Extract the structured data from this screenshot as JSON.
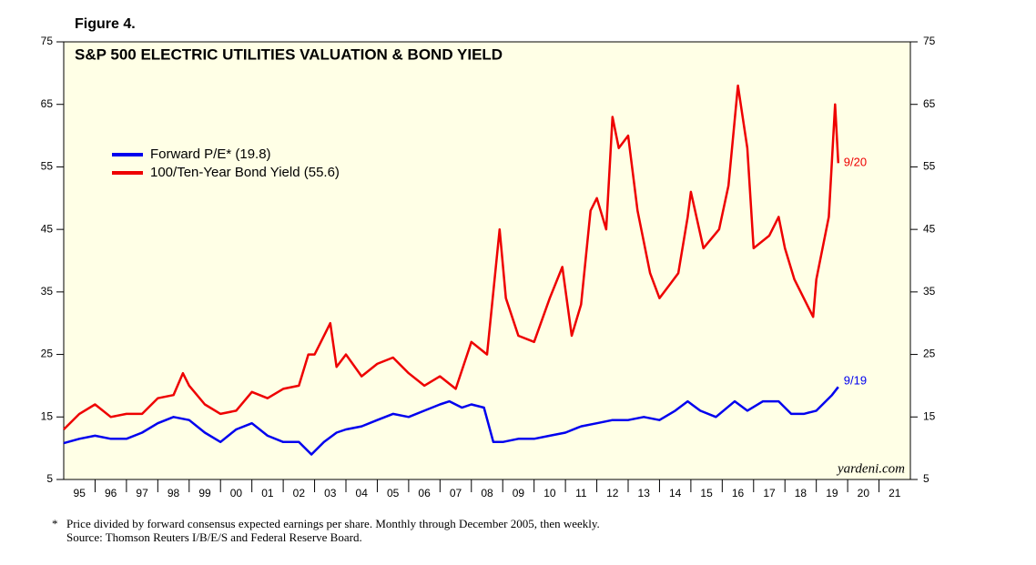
{
  "chart_data": {
    "type": "line",
    "figure_label": "Figure 4.",
    "title": "S&P 500 ELECTRIC UTILITIES VALUATION & BOND YIELD",
    "source_credit": "yardeni.com",
    "xlim": [
      1995,
      2022
    ],
    "xticks": [
      {
        "value": 1995.5,
        "label": "95"
      },
      {
        "value": 1996.5,
        "label": "96"
      },
      {
        "value": 1997.5,
        "label": "97"
      },
      {
        "value": 1998.5,
        "label": "98"
      },
      {
        "value": 1999.5,
        "label": "99"
      },
      {
        "value": 2000.5,
        "label": "00"
      },
      {
        "value": 2001.5,
        "label": "01"
      },
      {
        "value": 2002.5,
        "label": "02"
      },
      {
        "value": 2003.5,
        "label": "03"
      },
      {
        "value": 2004.5,
        "label": "04"
      },
      {
        "value": 2005.5,
        "label": "05"
      },
      {
        "value": 2006.5,
        "label": "06"
      },
      {
        "value": 2007.5,
        "label": "07"
      },
      {
        "value": 2008.5,
        "label": "08"
      },
      {
        "value": 2009.5,
        "label": "09"
      },
      {
        "value": 2010.5,
        "label": "10"
      },
      {
        "value": 2011.5,
        "label": "11"
      },
      {
        "value": 2012.5,
        "label": "12"
      },
      {
        "value": 2013.5,
        "label": "13"
      },
      {
        "value": 2014.5,
        "label": "14"
      },
      {
        "value": 2015.5,
        "label": "15"
      },
      {
        "value": 2016.5,
        "label": "16"
      },
      {
        "value": 2017.5,
        "label": "17"
      },
      {
        "value": 2018.5,
        "label": "18"
      },
      {
        "value": 2019.5,
        "label": "19"
      },
      {
        "value": 2020.5,
        "label": "20"
      },
      {
        "value": 2021.5,
        "label": "21"
      }
    ],
    "ylim": [
      5,
      75
    ],
    "yticks": [
      5,
      15,
      25,
      35,
      45,
      55,
      65,
      75
    ],
    "series": [
      {
        "name": "Forward P/E* (19.8)",
        "color": "#0000ee",
        "end_label": "9/19",
        "x": [
          1995.0,
          1995.5,
          1996.0,
          1996.5,
          1997.0,
          1997.5,
          1998.0,
          1998.5,
          1999.0,
          1999.5,
          2000.0,
          2000.5,
          2001.0,
          2001.5,
          2002.0,
          2002.5,
          2002.9,
          2003.3,
          2003.7,
          2004.0,
          2004.5,
          2005.0,
          2005.5,
          2006.0,
          2006.5,
          2007.0,
          2007.3,
          2007.7,
          2008.0,
          2008.4,
          2008.7,
          2009.0,
          2009.5,
          2010.0,
          2010.5,
          2011.0,
          2011.5,
          2012.0,
          2012.5,
          2013.0,
          2013.5,
          2014.0,
          2014.5,
          2014.9,
          2015.3,
          2015.8,
          2016.4,
          2016.8,
          2017.3,
          2017.8,
          2018.2,
          2018.6,
          2019.0,
          2019.5,
          2019.7
        ],
        "values": [
          10.8,
          11.5,
          12,
          11.5,
          11.5,
          12.5,
          14,
          15,
          14.5,
          12.5,
          11,
          13,
          14,
          12,
          11,
          11,
          9,
          11,
          12.5,
          13,
          13.5,
          14.5,
          15.5,
          15,
          16,
          17,
          17.5,
          16.5,
          17,
          16.5,
          11,
          11,
          11.5,
          11.5,
          12,
          12.5,
          13.5,
          14,
          14.5,
          14.5,
          15,
          14.5,
          16,
          17.5,
          16,
          15,
          17.5,
          16,
          17.5,
          17.5,
          15.5,
          15.5,
          16,
          18.5,
          19.8
        ]
      },
      {
        "name": "100/Ten-Year Bond Yield (55.6)",
        "color": "#ee0000",
        "end_label": "9/20",
        "x": [
          1995.0,
          1995.5,
          1996.0,
          1996.5,
          1997.0,
          1997.5,
          1998.0,
          1998.5,
          1998.8,
          1999.0,
          1999.5,
          2000.0,
          2000.5,
          2001.0,
          2001.5,
          2002.0,
          2002.5,
          2002.8,
          2003.0,
          2003.5,
          2003.7,
          2004.0,
          2004.5,
          2005.0,
          2005.5,
          2006.0,
          2006.5,
          2007.0,
          2007.5,
          2008.0,
          2008.5,
          2008.9,
          2009.1,
          2009.5,
          2010.0,
          2010.5,
          2010.9,
          2011.2,
          2011.5,
          2011.8,
          2012.0,
          2012.3,
          2012.5,
          2012.7,
          2013.0,
          2013.3,
          2013.7,
          2014.0,
          2014.3,
          2014.6,
          2014.9,
          2015.0,
          2015.4,
          2015.9,
          2016.2,
          2016.5,
          2016.8,
          2017.0,
          2017.5,
          2017.8,
          2018.0,
          2018.3,
          2018.6,
          2018.9,
          2019.0,
          2019.4,
          2019.6,
          2019.7
        ],
        "values": [
          13,
          15.5,
          17,
          15,
          15.5,
          15.5,
          18,
          18.5,
          22,
          20,
          17,
          15.5,
          16,
          19,
          18,
          19.5,
          20,
          25,
          25,
          30,
          23,
          25,
          21.5,
          23.5,
          24.5,
          22,
          20,
          21.5,
          19.5,
          27,
          25,
          45,
          34,
          28,
          27,
          34,
          39,
          28,
          33,
          48,
          50,
          45,
          63,
          58,
          60,
          48,
          38,
          34,
          36,
          38,
          47,
          51,
          42,
          45,
          52,
          68,
          58,
          42,
          44,
          47,
          42,
          37,
          34,
          31,
          37,
          47,
          65,
          55.6
        ]
      }
    ],
    "footnote": {
      "marker": "*",
      "text": "Price divided by forward consensus expected earnings per share. Monthly through December 2005, then weekly.",
      "source": "Source: Thomson Reuters I/B/E/S and Federal Reserve Board."
    }
  }
}
